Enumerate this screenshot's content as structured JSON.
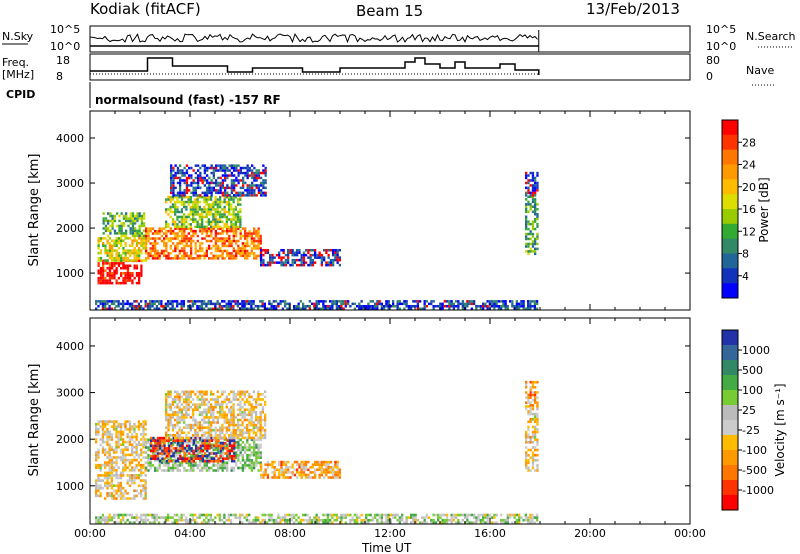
{
  "header": {
    "station": "Kodiak (fitACF)",
    "beam": "Beam 15",
    "date": "13/Feb/2013"
  },
  "summary": {
    "nsky_label": "N.Sky",
    "nsky_ticks": [
      "10^5",
      "10^0"
    ],
    "nsearch_label": "N.Search",
    "nsearch_ticks": [
      "10^5",
      "10^0"
    ],
    "freq_label": "Freq.",
    "freq_unit": "[MHz]",
    "freq_ticks": [
      "18",
      "8"
    ],
    "nave_label": "Nave",
    "nave_ticks": [
      "80",
      "0"
    ],
    "cpid_label": "CPID",
    "cpid_text": "normalsound (fast) -157 RF"
  },
  "chart_data": [
    {
      "type": "heatmap",
      "name": "power",
      "ylabel": "Slant Range [km]",
      "yticks": [
        "1000",
        "2000",
        "3000",
        "4000"
      ],
      "ylim": [
        180,
        4600
      ],
      "xlim": [
        0,
        24
      ],
      "colorbar": {
        "label": "Power [dB]",
        "ticks": [
          "28",
          "24",
          "20",
          "16",
          "12",
          "8",
          "4"
        ],
        "colors": [
          "#ff0000",
          "#ff3300",
          "#ff7700",
          "#ff9900",
          "#ffbb00",
          "#dddd00",
          "#99cc00",
          "#33aa33",
          "#338866",
          "#226699",
          "#1133bb",
          "#0000ff"
        ]
      },
      "blobs": [
        {
          "t0": 0.3,
          "t1": 2.1,
          "r0": 750,
          "r1": 1250,
          "level": 0.97
        },
        {
          "t0": 0.3,
          "t1": 2.2,
          "r0": 1250,
          "r1": 1800,
          "level": 0.55
        },
        {
          "t0": 0.5,
          "t1": 2.2,
          "r0": 1800,
          "r1": 2300,
          "level": 0.4
        },
        {
          "t0": 2.2,
          "t1": 6.8,
          "r0": 1300,
          "r1": 2000,
          "level": 0.78
        },
        {
          "t0": 3.0,
          "t1": 6.0,
          "r0": 2000,
          "r1": 2700,
          "level": 0.45
        },
        {
          "t0": 3.2,
          "t1": 7.0,
          "r0": 2700,
          "r1": 3400,
          "level": 0.12
        },
        {
          "t0": 6.8,
          "t1": 10.0,
          "r0": 1150,
          "r1": 1500,
          "level": 0.1
        },
        {
          "t0": 17.4,
          "t1": 17.9,
          "r0": 1400,
          "r1": 2700,
          "level": 0.35
        },
        {
          "t0": 17.4,
          "t1": 17.9,
          "r0": 2700,
          "r1": 3200,
          "level": 0.1
        },
        {
          "t0": 0.2,
          "t1": 17.9,
          "r0": 180,
          "r1": 400,
          "level": 0.15
        }
      ]
    },
    {
      "type": "heatmap",
      "name": "velocity",
      "ylabel": "Slant Range [km]",
      "yticks": [
        "1000",
        "2000",
        "3000",
        "4000"
      ],
      "ylim": [
        180,
        4600
      ],
      "xlim": [
        0,
        24
      ],
      "colorbar": {
        "label": "Velocity [m s⁻¹]",
        "ticks": [
          "1000",
          "500",
          "100",
          "25",
          "-25",
          "-100",
          "-500",
          "-1000"
        ],
        "colors": [
          "#2233aa",
          "#336699",
          "#338866",
          "#44aa44",
          "#77cc33",
          "#bbbbbb",
          "#cccccc",
          "#ffbb00",
          "#ff9900",
          "#ff7700",
          "#ff3300",
          "#ff0000"
        ]
      },
      "blobs": [
        {
          "t0": 0.2,
          "t1": 2.2,
          "r0": 700,
          "r1": 2400,
          "level": 0.42
        },
        {
          "t0": 2.2,
          "t1": 6.8,
          "r0": 1300,
          "r1": 2000,
          "level": 0.6
        },
        {
          "t0": 2.4,
          "t1": 5.8,
          "r0": 1500,
          "r1": 2000,
          "level": 0.05
        },
        {
          "t0": 3.0,
          "t1": 7.0,
          "r0": 2000,
          "r1": 3000,
          "level": 0.42
        },
        {
          "t0": 6.8,
          "t1": 10.0,
          "r0": 1150,
          "r1": 1500,
          "level": 0.33
        },
        {
          "t0": 17.4,
          "t1": 17.9,
          "r0": 1300,
          "r1": 2700,
          "level": 0.42
        },
        {
          "t0": 17.4,
          "t1": 17.9,
          "r0": 2700,
          "r1": 3200,
          "level": 0.3
        },
        {
          "t0": 0.2,
          "t1": 17.9,
          "r0": 180,
          "r1": 400,
          "level": 0.55
        }
      ]
    }
  ],
  "xaxis": {
    "label": "Time UT",
    "ticks": [
      "00:00",
      "04:00",
      "08:00",
      "12:00",
      "16:00",
      "20:00",
      "00:00"
    ]
  }
}
